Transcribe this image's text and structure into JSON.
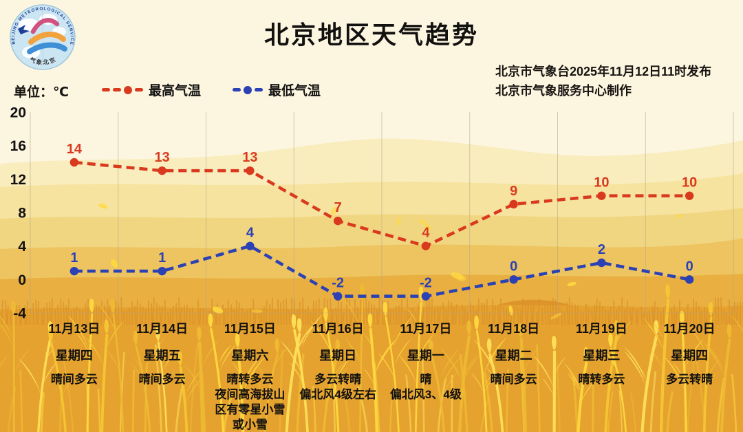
{
  "header": {
    "title": "北京地区天气趋势",
    "issue_line1": "北京市气象台2025年11月12日11时发布",
    "issue_line2": "北京市气象服务中心制作",
    "unit_label": "单位：℃",
    "logo": {
      "ring_text": "BEIJING METEOROLOGICAL SERVICE",
      "bottom_text": "气象北京"
    }
  },
  "colors": {
    "background_cream": "#FCF6E1",
    "field_orange": "#E49D2E",
    "wheat_yellow": "#FFD93F",
    "max_temp_red": "#D93A1E",
    "min_temp_blue": "#2B41B4",
    "grid": "#B3A286",
    "text": "#121110"
  },
  "chart_data": {
    "type": "line",
    "title": "北京地区天气趋势",
    "unit": "℃",
    "grid": "vertical",
    "ylim": [
      -4,
      20
    ],
    "yticks": [
      20,
      16,
      12,
      8,
      4,
      0,
      -4
    ],
    "categories": [
      "11月13日",
      "11月14日",
      "11月15日",
      "11月16日",
      "11月17日",
      "11月18日",
      "11月19日",
      "11月20日"
    ],
    "weekdays": [
      "星期四",
      "星期五",
      "星期六",
      "星期日",
      "星期一",
      "星期二",
      "星期三",
      "星期四"
    ],
    "weather": [
      [
        "晴间多云"
      ],
      [
        "晴间多云"
      ],
      [
        "晴转多云",
        "夜间高海拔山",
        "区有零星小雪",
        "或小雪"
      ],
      [
        "多云转晴",
        "偏北风4级左右"
      ],
      [
        "晴",
        "偏北风3、4级"
      ],
      [
        "晴间多云"
      ],
      [
        "晴转多云"
      ],
      [
        "多云转晴"
      ]
    ],
    "series": [
      {
        "id": "max",
        "name": "最高气温",
        "color": "#D93A1E",
        "values": [
          14,
          13,
          13,
          7,
          4,
          9,
          10,
          10
        ]
      },
      {
        "id": "min",
        "name": "最低气温",
        "color": "#2B41B4",
        "values": [
          1,
          1,
          4,
          -2,
          -2,
          0,
          2,
          0
        ]
      }
    ],
    "legend_position": "top"
  }
}
